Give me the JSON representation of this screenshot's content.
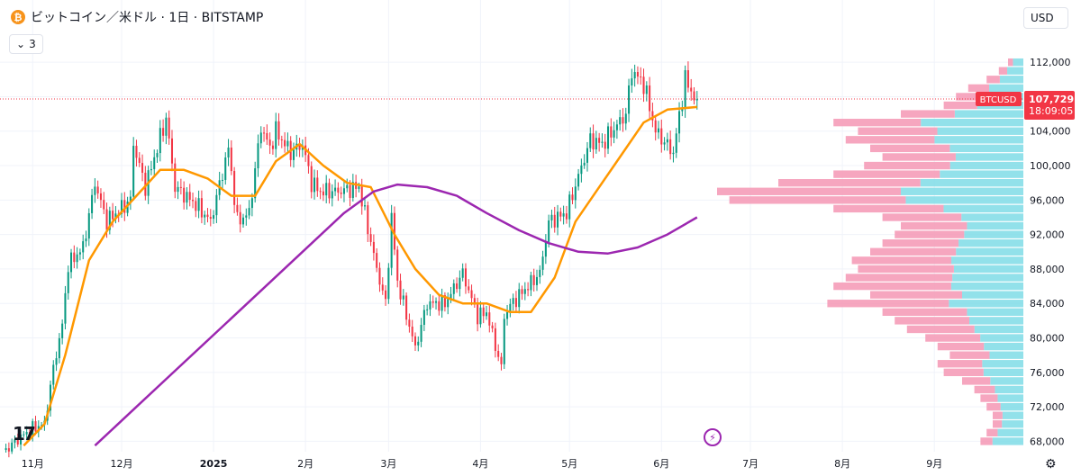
{
  "header": {
    "coin_icon": "bitcoin-icon",
    "title": "ビットコイン／米ドル · 1日 · BITSTAMP"
  },
  "indicator_toggle": {
    "icon": "chevron-down-icon",
    "count": "3"
  },
  "currency_selector": {
    "label": "USD"
  },
  "price_badge": {
    "symbol": "BTCUSD",
    "price": "107,729",
    "countdown": "18:09:05",
    "color": "#f23645"
  },
  "colors": {
    "up": "#089981",
    "down": "#f23645",
    "ma_short": "#ff9800",
    "ma_long": "#9c27b0",
    "vp_up": "#7fdce6",
    "vp_down": "#f596b4"
  },
  "chart_data": {
    "type": "candlestick",
    "title": "ビットコイン／米ドル · 1日 · BITSTAMP",
    "y_range": [
      67000,
      114000
    ],
    "y_ticks": [
      "112,000",
      "108,000",
      "104,000",
      "100,000",
      "96,000",
      "92,000",
      "88,000",
      "84,000",
      "80,000",
      "76,000",
      "72,000",
      "68,000"
    ],
    "y_tick_values": [
      112000,
      108000,
      104000,
      100000,
      96000,
      92000,
      88000,
      84000,
      80000,
      76000,
      72000,
      68000
    ],
    "x_range": [
      "2024-10-21",
      "2025-10-01"
    ],
    "x_ticks": [
      {
        "label": "11月",
        "date": "2024-11-01"
      },
      {
        "label": "12月",
        "date": "2024-12-01"
      },
      {
        "label": "2025",
        "date": "2025-01-01"
      },
      {
        "label": "2月",
        "date": "2025-02-01"
      },
      {
        "label": "3月",
        "date": "2025-03-01"
      },
      {
        "label": "4月",
        "date": "2025-04-01"
      },
      {
        "label": "5月",
        "date": "2025-05-01"
      },
      {
        "label": "6月",
        "date": "2025-06-01"
      },
      {
        "label": "7月",
        "date": "2025-07-01"
      },
      {
        "label": "8月",
        "date": "2025-08-01"
      },
      {
        "label": "9月",
        "date": "2025-09-01"
      }
    ],
    "last_price": 107729,
    "close_keypoints": [
      [
        "2024-10-23",
        67000
      ],
      [
        "2024-10-28",
        68500
      ],
      [
        "2024-11-01",
        69500
      ],
      [
        "2024-11-05",
        70000
      ],
      [
        "2024-11-08",
        76500
      ],
      [
        "2024-11-11",
        81500
      ],
      [
        "2024-11-13",
        88500
      ],
      [
        "2024-11-18",
        90500
      ],
      [
        "2024-11-22",
        98000
      ],
      [
        "2024-11-26",
        93500
      ],
      [
        "2024-12-04",
        96000
      ],
      [
        "2024-12-05",
        102500
      ],
      [
        "2024-12-09",
        97500
      ],
      [
        "2024-12-16",
        105500
      ],
      [
        "2024-12-19",
        97500
      ],
      [
        "2024-12-26",
        95500
      ],
      [
        "2024-12-31",
        93500
      ],
      [
        "2025-01-06",
        102000
      ],
      [
        "2025-01-09",
        93500
      ],
      [
        "2025-01-13",
        94500
      ],
      [
        "2025-01-17",
        104500
      ],
      [
        "2025-01-20",
        102000
      ],
      [
        "2025-01-22",
        104000
      ],
      [
        "2025-01-27",
        101500
      ],
      [
        "2025-01-31",
        102500
      ],
      [
        "2025-02-03",
        98000
      ],
      [
        "2025-02-06",
        97000
      ],
      [
        "2025-02-12",
        97000
      ],
      [
        "2025-02-19",
        97500
      ],
      [
        "2025-02-25",
        88000
      ],
      [
        "2025-02-28",
        84000
      ],
      [
        "2025-03-02",
        94000
      ],
      [
        "2025-03-04",
        86500
      ],
      [
        "2025-03-10",
        78800
      ],
      [
        "2025-03-14",
        84000
      ],
      [
        "2025-03-20",
        84000
      ],
      [
        "2025-03-26",
        87500
      ],
      [
        "2025-03-31",
        82500
      ],
      [
        "2025-04-03",
        83000
      ],
      [
        "2025-04-08",
        76500
      ],
      [
        "2025-04-09",
        82500
      ],
      [
        "2025-04-11",
        83800
      ],
      [
        "2025-04-21",
        87500
      ],
      [
        "2025-04-24",
        93500
      ],
      [
        "2025-04-30",
        94500
      ],
      [
        "2025-05-08",
        103000
      ],
      [
        "2025-05-12",
        102500
      ],
      [
        "2025-05-20",
        106000
      ],
      [
        "2025-05-22",
        111000
      ],
      [
        "2025-05-26",
        109500
      ],
      [
        "2025-05-30",
        104000
      ],
      [
        "2025-06-05",
        101500
      ],
      [
        "2025-06-09",
        110000
      ],
      [
        "2025-06-12",
        108000
      ],
      [
        "2025-06-13",
        107729
      ]
    ],
    "series": [
      {
        "name": "",
        "kind": "moving_average",
        "color": "#ff9800",
        "points": [
          [
            "2024-10-29",
            67500
          ],
          [
            "2024-11-05",
            70000
          ],
          [
            "2024-11-12",
            78000
          ],
          [
            "2024-11-20",
            89000
          ],
          [
            "2024-11-28",
            93500
          ],
          [
            "2024-12-06",
            96500
          ],
          [
            "2024-12-14",
            99500
          ],
          [
            "2024-12-22",
            99500
          ],
          [
            "2024-12-30",
            98500
          ],
          [
            "2025-01-07",
            96500
          ],
          [
            "2025-01-15",
            96500
          ],
          [
            "2025-01-22",
            100500
          ],
          [
            "2025-01-30",
            102500
          ],
          [
            "2025-02-07",
            100000
          ],
          [
            "2025-02-15",
            98000
          ],
          [
            "2025-02-23",
            97500
          ],
          [
            "2025-03-03",
            92000
          ],
          [
            "2025-03-10",
            88000
          ],
          [
            "2025-03-18",
            85000
          ],
          [
            "2025-03-26",
            84000
          ],
          [
            "2025-04-03",
            84000
          ],
          [
            "2025-04-11",
            83000
          ],
          [
            "2025-04-18",
            83000
          ],
          [
            "2025-04-26",
            87000
          ],
          [
            "2025-05-03",
            93500
          ],
          [
            "2025-05-10",
            97000
          ],
          [
            "2025-05-18",
            101000
          ],
          [
            "2025-05-26",
            105000
          ],
          [
            "2025-06-03",
            106500
          ],
          [
            "2025-06-13",
            106800
          ]
        ]
      },
      {
        "name": "",
        "kind": "moving_average",
        "color": "#9c27b0",
        "points": [
          [
            "2024-11-22",
            67500
          ],
          [
            "2024-12-06",
            72000
          ],
          [
            "2024-12-20",
            76500
          ],
          [
            "2025-01-03",
            81000
          ],
          [
            "2025-01-17",
            85500
          ],
          [
            "2025-01-31",
            90000
          ],
          [
            "2025-02-14",
            94500
          ],
          [
            "2025-02-24",
            97000
          ],
          [
            "2025-03-04",
            97800
          ],
          [
            "2025-03-14",
            97500
          ],
          [
            "2025-03-24",
            96500
          ],
          [
            "2025-04-03",
            94500
          ],
          [
            "2025-04-14",
            92500
          ],
          [
            "2025-04-24",
            91000
          ],
          [
            "2025-05-04",
            90000
          ],
          [
            "2025-05-14",
            89800
          ],
          [
            "2025-05-24",
            90500
          ],
          [
            "2025-06-03",
            92000
          ],
          [
            "2025-06-13",
            94000
          ]
        ]
      }
    ],
    "volume_profile": {
      "levels": [
        68000,
        69000,
        70000,
        71000,
        72000,
        73000,
        74000,
        75000,
        76000,
        77000,
        78000,
        79000,
        80000,
        81000,
        82000,
        83000,
        84000,
        85000,
        86000,
        87000,
        88000,
        89000,
        90000,
        91000,
        92000,
        93000,
        94000,
        95000,
        96000,
        97000,
        98000,
        99000,
        100000,
        101000,
        102000,
        103000,
        104000,
        105000,
        106000,
        107000,
        108000,
        109000,
        110000,
        111000,
        112000
      ],
      "total": [
        0.14,
        0.12,
        0.1,
        0.1,
        0.12,
        0.14,
        0.16,
        0.2,
        0.26,
        0.28,
        0.24,
        0.28,
        0.32,
        0.38,
        0.42,
        0.46,
        0.64,
        0.5,
        0.62,
        0.58,
        0.54,
        0.56,
        0.5,
        0.46,
        0.42,
        0.4,
        0.46,
        0.62,
        0.96,
        1.0,
        0.8,
        0.62,
        0.52,
        0.46,
        0.5,
        0.58,
        0.54,
        0.62,
        0.4,
        0.26,
        0.22,
        0.18,
        0.12,
        0.08,
        0.05
      ],
      "up_share": [
        0.72,
        0.7,
        0.7,
        0.68,
        0.62,
        0.6,
        0.58,
        0.54,
        0.5,
        0.48,
        0.46,
        0.46,
        0.44,
        0.42,
        0.42,
        0.4,
        0.38,
        0.4,
        0.38,
        0.4,
        0.42,
        0.42,
        0.44,
        0.46,
        0.46,
        0.46,
        0.44,
        0.42,
        0.4,
        0.4,
        0.42,
        0.44,
        0.46,
        0.48,
        0.48,
        0.5,
        0.52,
        0.54,
        0.56,
        0.58,
        0.6,
        0.62,
        0.64,
        0.66,
        0.68
      ]
    }
  }
}
